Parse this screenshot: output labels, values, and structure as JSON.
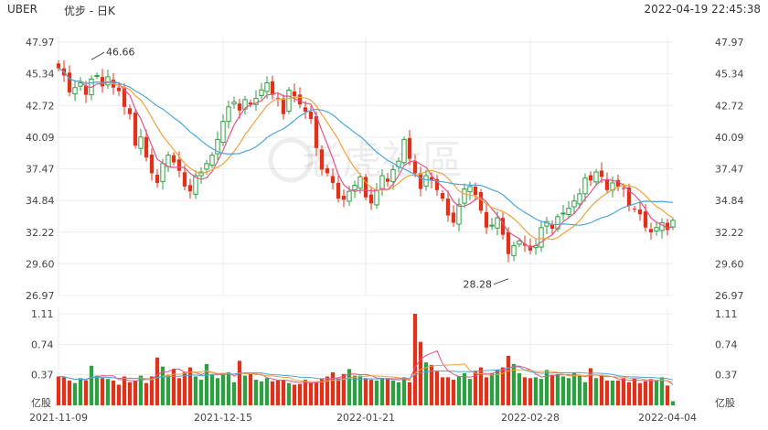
{
  "header": {
    "symbol": "UBER",
    "period": "优步 - 日K",
    "timestamp": "2022-04-19 22:45:38"
  },
  "watermark": "老虎社區",
  "colors": {
    "up": "#2ea043",
    "down": "#e0311b",
    "ma5": "#e8508a",
    "ma10": "#f3a23b",
    "ma20": "#49a8db",
    "grid": "#ececec"
  },
  "chart_data": [
    {
      "type": "candlestick",
      "title": "",
      "y_ticks": [
        "47.97",
        "45.34",
        "42.72",
        "40.09",
        "37.47",
        "34.84",
        "32.22",
        "29.60",
        "26.97"
      ],
      "y_tick_values": [
        47.97,
        45.34,
        42.72,
        40.09,
        37.47,
        34.84,
        32.22,
        29.6,
        26.97
      ],
      "ylim": [
        26.97,
        47.97
      ],
      "x_tick_labels": [
        "2021-11-09",
        "2021-12-15",
        "2022-01-21",
        "2022-02-28",
        "2022-04-04"
      ],
      "x_tick_index": [
        0,
        30,
        56,
        86,
        111
      ],
      "annotations": [
        {
          "text": "46.66",
          "index": 6,
          "value": 46.66
        },
        {
          "text": "28.28",
          "index": 82,
          "value": 28.28
        }
      ],
      "moving_averages": [
        "MA5",
        "MA10",
        "MA20"
      ],
      "close_series": [
        45.8,
        45.2,
        43.8,
        44.2,
        44.6,
        43.6,
        44.9,
        45.2,
        44.3,
        45.1,
        44.2,
        43.9,
        42.6,
        42.0,
        39.4,
        40.1,
        38.4,
        37.1,
        36.3,
        37.9,
        38.6,
        38.0,
        37.3,
        36.0,
        35.6,
        36.9,
        37.2,
        37.9,
        38.6,
        39.9,
        41.4,
        42.6,
        43.0,
        42.3,
        43.2,
        42.8,
        43.3,
        44.0,
        44.6,
        43.6,
        43.3,
        42.0,
        44.0,
        43.5,
        42.8,
        42.2,
        41.6,
        39.2,
        37.4,
        37.1,
        36.3,
        35.0,
        34.9,
        35.6,
        36.1,
        36.8,
        35.1,
        34.6,
        35.7,
        36.9,
        36.4,
        37.4,
        38.1,
        39.9,
        38.3,
        37.1,
        35.8,
        36.9,
        36.5,
        35.7,
        35.0,
        33.6,
        33.0,
        34.5,
        35.8,
        36.0,
        35.3,
        34.0,
        32.6,
        32.8,
        33.4,
        32.0,
        30.4,
        31.1,
        31.5,
        31.1,
        30.7,
        31.1,
        32.6,
        33.1,
        32.5,
        33.5,
        33.8,
        34.2,
        34.8,
        35.4,
        36.7,
        36.5,
        37.2,
        36.8,
        35.7,
        36.3,
        36.0,
        35.8,
        34.4,
        34.1,
        33.7,
        32.6,
        32.2,
        32.6,
        33.0,
        32.4,
        33.2
      ],
      "ohlc": [],
      "volume": {
        "unit": "亿股",
        "ticks": [
          "1.11",
          "0.74",
          "0.37"
        ],
        "tick_values": [
          1.11,
          0.74,
          0.37
        ],
        "ylim": [
          0,
          1.11
        ],
        "values": [
          0.35,
          0.34,
          0.3,
          0.27,
          0.33,
          0.3,
          0.48,
          0.36,
          0.33,
          0.32,
          0.3,
          0.25,
          0.35,
          0.28,
          0.3,
          0.36,
          0.27,
          0.35,
          0.58,
          0.47,
          0.37,
          0.44,
          0.33,
          0.4,
          0.46,
          0.35,
          0.31,
          0.5,
          0.38,
          0.33,
          0.38,
          0.4,
          0.28,
          0.54,
          0.36,
          0.38,
          0.31,
          0.29,
          0.33,
          0.29,
          0.3,
          0.31,
          0.27,
          0.25,
          0.26,
          0.31,
          0.27,
          0.28,
          0.32,
          0.35,
          0.4,
          0.32,
          0.38,
          0.44,
          0.36,
          0.36,
          0.33,
          0.31,
          0.3,
          0.33,
          0.33,
          0.3,
          0.28,
          0.34,
          0.28,
          1.11,
          0.77,
          0.52,
          0.49,
          0.41,
          0.34,
          0.34,
          0.31,
          0.35,
          0.39,
          0.32,
          0.42,
          0.46,
          0.34,
          0.39,
          0.43,
          0.46,
          0.6,
          0.5,
          0.39,
          0.34,
          0.33,
          0.34,
          0.32,
          0.43,
          0.37,
          0.38,
          0.35,
          0.33,
          0.4,
          0.37,
          0.28,
          0.45,
          0.33,
          0.37,
          0.3,
          0.3,
          0.3,
          0.33,
          0.28,
          0.33,
          0.27,
          0.29,
          0.32,
          0.3,
          0.34,
          0.24,
          0.05
        ]
      }
    }
  ]
}
